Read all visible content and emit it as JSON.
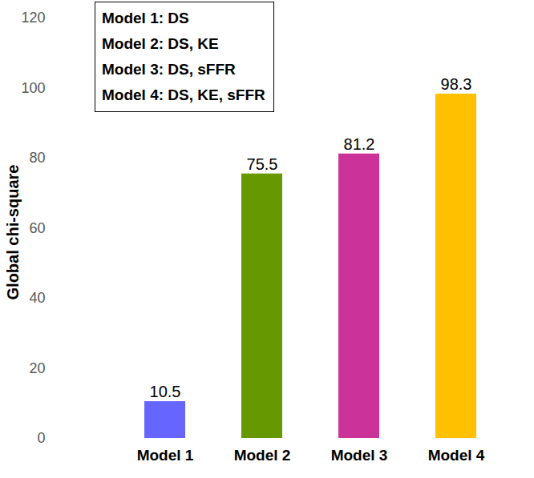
{
  "chart_data": {
    "type": "bar",
    "y_label": "Global chi-square",
    "annotations": [
      "Model 1: DS",
      "Model 2: DS, KE",
      "Model 3: DS, sFFR",
      "Model 4: DS, KE, sFFR"
    ],
    "categories": [
      "Model 1",
      "Model 2",
      "Model 3",
      "Model 4"
    ],
    "values": [
      10.5,
      75.5,
      81.2,
      98.3
    ],
    "colors": [
      "#6666FF",
      "#669900",
      "#CC3399",
      "#FFC000"
    ],
    "ylim": [
      0,
      120
    ],
    "yticks": [
      0,
      20,
      40,
      60,
      80,
      100,
      120
    ],
    "grid": false,
    "data_labels": true
  }
}
